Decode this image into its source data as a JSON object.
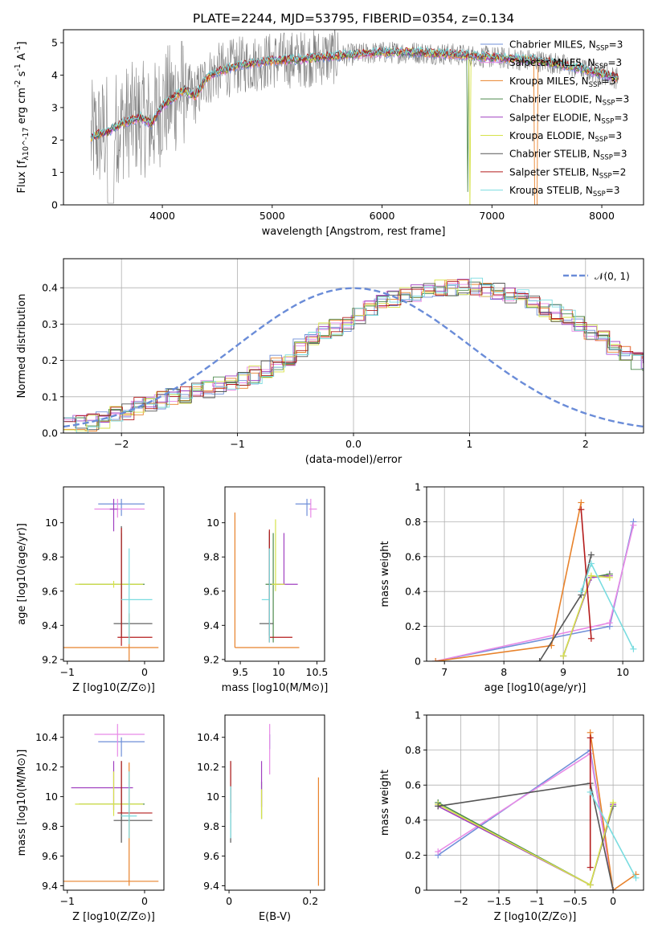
{
  "figure_title": "PLATE=2244, MJD=53795, FIBERID=0354, z=0.134",
  "series_colors": {
    "Chabrier MILES": "#6f8fd8",
    "Salpeter MILES": "#e88ae6",
    "Kroupa MILES": "#e8822b",
    "Chabrier ELODIE": "#4e8a4e",
    "Salpeter ELODIE": "#a040c0",
    "Kroupa ELODIE": "#d6e24a",
    "Chabrier STELIB": "#555555",
    "Salpeter STELIB": "#b41c1c",
    "Kroupa STELIB": "#79dce0",
    "data": "#808080",
    "normal": "#6a8cd8"
  },
  "chart_data": [
    {
      "id": "spectrum",
      "type": "line",
      "xlabel": "wavelength [Angstrom, rest frame]",
      "ylabel": "Flux [f_λ10^-17 erg cm^-2 s^-1 A^-1]",
      "xlim": [
        3100,
        8380
      ],
      "ylim": [
        0,
        5.4
      ],
      "xticks": [
        4000,
        5000,
        6000,
        7000,
        8000
      ],
      "yticks": [
        0,
        1,
        2,
        3,
        4,
        5
      ],
      "legend_position": "upper right",
      "legend": [
        {
          "name": "Chabrier MILES, N_SSP=3",
          "n_ssp": "3"
        },
        {
          "name": "Salpeter MILES, N_SSP=3",
          "n_ssp": "3"
        },
        {
          "name": "Kroupa MILES, N_SSP=3",
          "n_ssp": "3"
        },
        {
          "name": "Chabrier ELODIE, N_SSP=3",
          "n_ssp": "3"
        },
        {
          "name": "Salpeter ELODIE, N_SSP=3",
          "n_ssp": "3"
        },
        {
          "name": "Kroupa ELODIE, N_SSP=3",
          "n_ssp": "3"
        },
        {
          "name": "Chabrier STELIB, N_SSP=3",
          "n_ssp": "3"
        },
        {
          "name": "Salpeter STELIB, N_SSP=2",
          "n_ssp": "2"
        },
        {
          "name": "Kroupa STELIB, N_SSP=3",
          "n_ssp": "3"
        }
      ],
      "model_continuum": {
        "x": [
          3350,
          3400,
          3500,
          3600,
          3700,
          3800,
          3900,
          4000,
          4100,
          4200,
          4300,
          4400,
          4500,
          4700,
          5000,
          5300,
          5600,
          6000,
          6300,
          6600,
          6800,
          7000,
          7200,
          7400,
          7600,
          7800,
          8000,
          8150
        ],
        "y": [
          2.05,
          2.15,
          2.25,
          2.45,
          2.6,
          2.7,
          2.5,
          3.05,
          3.3,
          3.55,
          3.35,
          3.9,
          4.1,
          4.3,
          4.45,
          4.5,
          4.6,
          4.7,
          4.7,
          4.65,
          4.6,
          4.55,
          4.5,
          4.45,
          4.35,
          4.2,
          4.05,
          3.9
        ]
      }
    },
    {
      "id": "residuals",
      "type": "bar",
      "xlabel": "(data-model)/error",
      "ylabel": "Normed distribution",
      "xlim": [
        -2.5,
        2.5
      ],
      "ylim": [
        0,
        0.48
      ],
      "xticks": [
        -2,
        -1,
        0,
        1,
        2
      ],
      "yticks": [
        0.0,
        0.1,
        0.2,
        0.3,
        0.4
      ],
      "grid": true,
      "legend_position": "upper right",
      "legend": [
        {
          "name": "N(0,1)"
        }
      ],
      "bin_width": 0.1,
      "bin_start": -2.5,
      "histogram_envelope": [
        0.02,
        0.025,
        0.03,
        0.035,
        0.05,
        0.06,
        0.075,
        0.085,
        0.09,
        0.1,
        0.105,
        0.115,
        0.12,
        0.13,
        0.135,
        0.145,
        0.16,
        0.175,
        0.19,
        0.21,
        0.235,
        0.26,
        0.28,
        0.29,
        0.3,
        0.32,
        0.34,
        0.355,
        0.37,
        0.38,
        0.385,
        0.39,
        0.4,
        0.4,
        0.405,
        0.405,
        0.4,
        0.39,
        0.38,
        0.37,
        0.36,
        0.345,
        0.33,
        0.315,
        0.3,
        0.28,
        0.26,
        0.24,
        0.22,
        0.2,
        0.185,
        0.17,
        0.155,
        0.14,
        0.125,
        0.115,
        0.105,
        0.095,
        0.085,
        0.075,
        0.07,
        0.062,
        0.055,
        0.05,
        0.045,
        0.04,
        0.036,
        0.032,
        0.03,
        0.028
      ]
    },
    {
      "id": "z-age",
      "type": "scatter",
      "xlabel": "Z [log10(Z/Z⊙)]",
      "ylabel": "age [log10(age/yr)]",
      "xlim": [
        -1.05,
        0.25
      ],
      "ylim": [
        9.19,
        10.21
      ],
      "xticks": [
        -1,
        0
      ],
      "yticks": [
        9.2,
        9.4,
        9.6,
        9.8,
        10.0
      ],
      "points": [
        {
          "series": "Chabrier MILES",
          "x": -0.3,
          "y": 10.11,
          "xerr": [
            0.3,
            0.3
          ],
          "yerr": [
            0.07,
            0.03
          ]
        },
        {
          "series": "Salpeter MILES",
          "x": -0.35,
          "y": 10.08,
          "xerr": [
            0.3,
            0.35
          ],
          "yerr": [
            0.05,
            0.06
          ]
        },
        {
          "series": "Kroupa MILES",
          "x": -0.2,
          "y": 9.27,
          "xerr": [
            1.0,
            0.38
          ],
          "yerr": [
            0.08,
            0.2
          ]
        },
        {
          "series": "Chabrier ELODIE",
          "x": -0.3,
          "y": 9.64,
          "xerr": [
            0.55,
            0.3
          ],
          "yerr": [
            0.3,
            0.3
          ]
        },
        {
          "series": "Salpeter ELODIE",
          "x": -0.4,
          "y": 10.08,
          "xerr": [
            0.05,
            0.05
          ],
          "yerr": [
            0.13,
            0.06
          ]
        },
        {
          "series": "Kroupa ELODIE",
          "x": -0.4,
          "y": 9.64,
          "xerr": [
            0.5,
            0.38
          ],
          "yerr": [
            0.02,
            0.02
          ]
        },
        {
          "series": "Chabrier STELIB",
          "x": -0.3,
          "y": 9.41,
          "xerr": [
            0.1,
            0.4
          ],
          "yerr": [
            0.08,
            0.57
          ]
        },
        {
          "series": "Salpeter STELIB",
          "x": -0.3,
          "y": 9.33,
          "xerr": [
            0.05,
            0.4
          ],
          "yerr": [
            0.05,
            0.64
          ]
        },
        {
          "series": "Kroupa STELIB",
          "x": -0.2,
          "y": 9.55,
          "xerr": [
            0.1,
            0.3
          ],
          "yerr": [
            0.26,
            0.3
          ]
        }
      ]
    },
    {
      "id": "mass-age",
      "type": "scatter",
      "xlabel": "mass [log10(M/M⊙)]",
      "ylabel": "",
      "xlim": [
        9.3,
        10.6
      ],
      "ylim": [
        9.19,
        10.21
      ],
      "xticks": [
        9.5,
        10.0,
        10.5
      ],
      "yticks": [
        9.2,
        9.4,
        9.6,
        9.8,
        10.0
      ],
      "points": [
        {
          "series": "Chabrier MILES",
          "x": 10.37,
          "y": 10.11,
          "xerr": [
            0.15,
            0.05
          ],
          "yerr": [
            0.07,
            0.03
          ]
        },
        {
          "series": "Salpeter MILES",
          "x": 10.42,
          "y": 10.08,
          "xerr": [
            0.02,
            0.08
          ],
          "yerr": [
            0.05,
            0.06
          ]
        },
        {
          "series": "Kroupa MILES",
          "x": 9.43,
          "y": 9.27,
          "xerr": [
            0.0,
            0.84
          ],
          "yerr": [
            0.0,
            0.79
          ]
        },
        {
          "series": "Chabrier ELODIE",
          "x": 9.93,
          "y": 9.64,
          "xerr": [
            0.1,
            0.1
          ],
          "yerr": [
            0.34,
            0.3
          ]
        },
        {
          "series": "Salpeter ELODIE",
          "x": 10.07,
          "y": 9.64,
          "xerr": [
            0.1,
            0.18
          ],
          "yerr": [
            0.0,
            0.3
          ]
        },
        {
          "series": "Kroupa ELODIE",
          "x": 9.96,
          "y": 9.64,
          "xerr": [
            0.05,
            0.12
          ],
          "yerr": [
            0.04,
            0.38
          ]
        },
        {
          "series": "Chabrier STELIB",
          "x": 9.88,
          "y": 9.41,
          "xerr": [
            0.13,
            0.05
          ],
          "yerr": [
            0.07,
            0.54
          ]
        },
        {
          "series": "Salpeter STELIB",
          "x": 9.88,
          "y": 9.33,
          "xerr": [
            0.0,
            0.3
          ],
          "yerr": [
            0.03,
            0.63
          ]
        },
        {
          "series": "Kroupa STELIB",
          "x": 9.88,
          "y": 9.55,
          "xerr": [
            0.1,
            0.0
          ],
          "yerr": [
            0.25,
            0.3
          ]
        }
      ]
    },
    {
      "id": "weight-age",
      "type": "line",
      "xlabel": "age [log10(age/yr)]",
      "ylabel": "mass weight",
      "xlim": [
        6.7,
        10.35
      ],
      "ylim": [
        0.0,
        1.0
      ],
      "xticks": [
        7,
        8,
        9,
        10
      ],
      "yticks": [
        0.0,
        0.2,
        0.4,
        0.6,
        0.8,
        1.0
      ],
      "grid": true,
      "series": [
        {
          "name": "Chabrier MILES",
          "x": [
            6.85,
            9.78,
            10.18
          ],
          "y": [
            0.0,
            0.2,
            0.8
          ]
        },
        {
          "name": "Salpeter MILES",
          "x": [
            6.85,
            9.78,
            10.18
          ],
          "y": [
            0.0,
            0.22,
            0.78
          ]
        },
        {
          "name": "Kroupa MILES",
          "x": [
            6.85,
            8.8,
            9.3
          ],
          "y": [
            0.0,
            0.09,
            0.91
          ]
        },
        {
          "name": "Chabrier ELODIE",
          "x": [
            9.0,
            9.47,
            9.78
          ],
          "y": [
            0.03,
            0.48,
            0.5
          ]
        },
        {
          "name": "Salpeter ELODIE",
          "x": [
            9.0,
            9.47,
            9.78
          ],
          "y": [
            0.03,
            0.48,
            0.49
          ]
        },
        {
          "name": "Kroupa ELODIE",
          "x": [
            9.0,
            9.47,
            9.78
          ],
          "y": [
            0.03,
            0.49,
            0.48
          ]
        },
        {
          "name": "Chabrier STELIB",
          "x": [
            8.6,
            9.3,
            9.47
          ],
          "y": [
            0.0,
            0.38,
            0.61
          ]
        },
        {
          "name": "Salpeter STELIB",
          "x": [
            9.3,
            9.47
          ],
          "y": [
            0.87,
            0.13
          ]
        },
        {
          "name": "Kroupa STELIB",
          "x": [
            9.3,
            9.47,
            10.18
          ],
          "y": [
            0.4,
            0.56,
            0.07
          ]
        }
      ]
    },
    {
      "id": "z-mass",
      "type": "scatter",
      "xlabel": "Z [log10(Z/Z⊙)]",
      "ylabel": "mass [log10(M/M⊙)]",
      "xlim": [
        -1.05,
        0.25
      ],
      "ylim": [
        9.37,
        10.55
      ],
      "xticks": [
        -1,
        0
      ],
      "yticks": [
        9.4,
        9.6,
        9.8,
        10.0,
        10.2,
        10.4
      ],
      "points": [
        {
          "series": "Chabrier MILES",
          "x": -0.3,
          "y": 10.37,
          "xerr": [
            0.3,
            0.3
          ],
          "yerr": [
            0.1,
            0.03
          ]
        },
        {
          "series": "Salpeter MILES",
          "x": -0.35,
          "y": 10.42,
          "xerr": [
            0.3,
            0.35
          ],
          "yerr": [
            0.15,
            0.07
          ]
        },
        {
          "series": "Kroupa MILES",
          "x": -0.2,
          "y": 9.43,
          "xerr": [
            1.0,
            0.38
          ],
          "yerr": [
            0.03,
            0.8
          ]
        },
        {
          "series": "Chabrier ELODIE",
          "x": -0.3,
          "y": 9.95,
          "xerr": [
            0.55,
            0.3
          ],
          "yerr": [
            0.1,
            0.1
          ]
        },
        {
          "series": "Salpeter ELODIE",
          "x": -0.4,
          "y": 10.06,
          "xerr": [
            0.55,
            0.25
          ],
          "yerr": [
            0.15,
            0.18
          ]
        },
        {
          "series": "Kroupa ELODIE",
          "x": -0.4,
          "y": 9.95,
          "xerr": [
            0.5,
            0.38
          ],
          "yerr": [
            0.08,
            0.22
          ]
        },
        {
          "series": "Chabrier STELIB",
          "x": -0.3,
          "y": 9.84,
          "xerr": [
            0.1,
            0.4
          ],
          "yerr": [
            0.15,
            0.4
          ]
        },
        {
          "series": "Salpeter STELIB",
          "x": -0.3,
          "y": 9.89,
          "xerr": [
            0.05,
            0.4
          ],
          "yerr": [
            0.0,
            0.35
          ]
        },
        {
          "series": "Kroupa STELIB",
          "x": -0.2,
          "y": 9.87,
          "xerr": [
            0.1,
            0.1
          ],
          "yerr": [
            0.15,
            0.3
          ]
        }
      ]
    },
    {
      "id": "ebv-mass",
      "type": "scatter",
      "xlabel": "E(B-V)",
      "ylabel": "",
      "xlim": [
        -0.01,
        0.235
      ],
      "ylim": [
        9.37,
        10.55
      ],
      "xticks": [
        0.0,
        0.2
      ],
      "yticks": [
        9.4,
        9.6,
        9.8,
        10.0,
        10.2,
        10.4
      ],
      "points": [
        {
          "series": "Chabrier MILES",
          "x": 0.1,
          "y": 10.37,
          "yerr": [
            0.05,
            0.05
          ]
        },
        {
          "series": "Salpeter MILES",
          "x": 0.1,
          "y": 10.42,
          "yerr": [
            0.27,
            0.07
          ]
        },
        {
          "series": "Kroupa MILES",
          "x": 0.22,
          "y": 9.43,
          "yerr": [
            0.03,
            0.7
          ]
        },
        {
          "series": "Chabrier ELODIE",
          "x": 0.08,
          "y": 9.95,
          "yerr": [
            0.1,
            0.15
          ]
        },
        {
          "series": "Salpeter ELODIE",
          "x": 0.08,
          "y": 10.06,
          "yerr": [
            0.13,
            0.18
          ]
        },
        {
          "series": "Kroupa ELODIE",
          "x": 0.08,
          "y": 9.95,
          "yerr": [
            0.1,
            0.1
          ]
        },
        {
          "series": "Chabrier STELIB",
          "x": 0.004,
          "y": 9.84,
          "yerr": [
            0.15,
            0.4
          ]
        },
        {
          "series": "Salpeter STELIB",
          "x": 0.004,
          "y": 9.89,
          "yerr": [
            0.0,
            0.35
          ]
        },
        {
          "series": "Kroupa STELIB",
          "x": 0.004,
          "y": 9.87,
          "yerr": [
            0.15,
            0.2
          ]
        }
      ]
    },
    {
      "id": "weight-z",
      "type": "line",
      "xlabel": "Z [log10(Z/Z⊙)]",
      "ylabel": "mass weight",
      "xlim": [
        -2.45,
        0.4
      ],
      "ylim": [
        0.0,
        1.0
      ],
      "xticks": [
        -2.0,
        -1.5,
        -1.0,
        -0.5,
        0.0
      ],
      "yticks": [
        0.0,
        0.2,
        0.4,
        0.6,
        0.8,
        1.0
      ],
      "grid": true,
      "series": [
        {
          "name": "Chabrier MILES",
          "x": [
            -2.3,
            -0.3,
            0.0
          ],
          "y": [
            0.2,
            0.8,
            0.0
          ]
        },
        {
          "name": "Salpeter MILES",
          "x": [
            -2.3,
            -0.3,
            0.0
          ],
          "y": [
            0.22,
            0.78,
            0.0
          ]
        },
        {
          "name": "Kroupa MILES",
          "x": [
            -0.3,
            0.0,
            0.3
          ],
          "y": [
            0.9,
            0.0,
            0.09
          ]
        },
        {
          "name": "Chabrier ELODIE",
          "x": [
            -2.3,
            -0.3,
            0.0
          ],
          "y": [
            0.5,
            0.03,
            0.48
          ]
        },
        {
          "name": "Salpeter ELODIE",
          "x": [
            -2.3,
            -0.3,
            0.0
          ],
          "y": [
            0.48,
            0.03,
            0.49
          ]
        },
        {
          "name": "Kroupa ELODIE",
          "x": [
            -2.3,
            -0.3,
            0.0
          ],
          "y": [
            0.49,
            0.03,
            0.5
          ]
        },
        {
          "name": "Chabrier STELIB",
          "x": [
            -2.3,
            -0.3,
            0.0
          ],
          "y": [
            0.48,
            0.61,
            0.0
          ]
        },
        {
          "name": "Salpeter STELIB",
          "x": [
            -0.3,
            -0.3
          ],
          "y": [
            0.87,
            0.13
          ]
        },
        {
          "name": "Kroupa STELIB",
          "x": [
            -0.3,
            0.3
          ],
          "y": [
            0.56,
            0.07
          ]
        }
      ]
    }
  ]
}
